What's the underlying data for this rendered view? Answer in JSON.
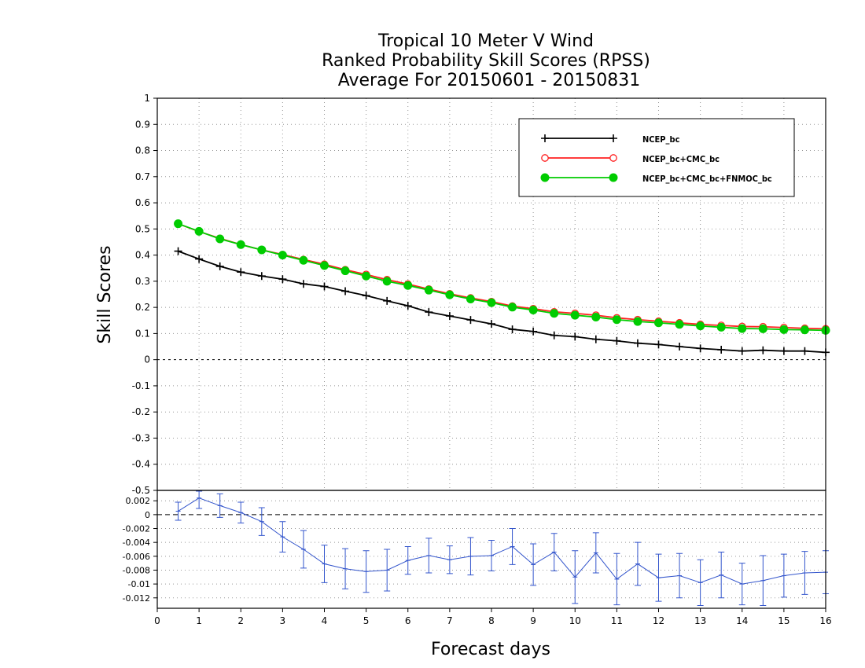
{
  "chart_data": [
    {
      "type": "line",
      "title": [
        "Tropical 10 Meter V Wind",
        "Ranked Probability Skill Scores (RPSS)",
        "Average For 20150601 - 20150831"
      ],
      "xlabel": "Forecast days",
      "ylabel": "Skill Scores",
      "xlim": [
        0,
        16
      ],
      "ylim": [
        -0.5,
        1
      ],
      "xticks": [
        "0",
        "1",
        "2",
        "3",
        "4",
        "5",
        "6",
        "7",
        "8",
        "9",
        "10",
        "11",
        "12",
        "13",
        "14",
        "15",
        "16"
      ],
      "yticks": [
        "-0.5",
        "-0.4",
        "-0.3",
        "-0.2",
        "-0.1",
        "0",
        "0.1",
        "0.2",
        "0.3",
        "0.4",
        "0.5",
        "0.6",
        "0.7",
        "0.8",
        "0.9",
        "1"
      ],
      "grid": true,
      "legend_position": "top-right",
      "x": [
        0.5,
        1,
        1.5,
        2,
        2.5,
        3,
        3.5,
        4,
        4.5,
        5,
        5.5,
        6,
        6.5,
        7,
        7.5,
        8,
        8.5,
        9,
        9.5,
        10,
        10.5,
        11,
        11.5,
        12,
        12.5,
        13,
        13.5,
        14,
        14.5,
        15,
        15.5,
        16
      ],
      "series": [
        {
          "name": "NCEP_bc",
          "color": "#000000",
          "marker": "plus",
          "values": [
            0.415,
            0.385,
            0.357,
            0.335,
            0.32,
            0.308,
            0.29,
            0.28,
            0.262,
            0.245,
            0.225,
            0.206,
            0.182,
            0.167,
            0.152,
            0.137,
            0.116,
            0.108,
            0.093,
            0.088,
            0.078,
            0.072,
            0.063,
            0.058,
            0.05,
            0.043,
            0.038,
            0.033,
            0.036,
            0.033,
            0.033,
            0.028
          ]
        },
        {
          "name": "NCEP_bc+CMC_bc",
          "color": "#ff2020",
          "marker": "open-circle",
          "values": [
            0.52,
            0.49,
            0.464,
            0.44,
            0.42,
            0.402,
            0.383,
            0.365,
            0.344,
            0.326,
            0.306,
            0.289,
            0.27,
            0.252,
            0.236,
            0.222,
            0.205,
            0.195,
            0.183,
            0.177,
            0.17,
            0.16,
            0.153,
            0.147,
            0.141,
            0.135,
            0.131,
            0.127,
            0.126,
            0.123,
            0.12,
            0.118
          ]
        },
        {
          "name": "NCEP_bc+CMC_bc+FNMOC_bc",
          "color": "#00cc00",
          "marker": "filled-circle",
          "values": [
            0.52,
            0.491,
            0.462,
            0.44,
            0.42,
            0.4,
            0.38,
            0.36,
            0.34,
            0.32,
            0.3,
            0.284,
            0.266,
            0.248,
            0.232,
            0.218,
            0.201,
            0.19,
            0.177,
            0.17,
            0.163,
            0.153,
            0.146,
            0.141,
            0.135,
            0.129,
            0.124,
            0.119,
            0.118,
            0.115,
            0.114,
            0.112
          ]
        }
      ]
    },
    {
      "type": "line",
      "xlim": [
        0,
        16
      ],
      "ylim": [
        -0.0135,
        0.0035
      ],
      "yticks": [
        "-0.012",
        "-0.01",
        "-0.008",
        "-0.006",
        "-0.004",
        "-0.002",
        "0",
        "0.002"
      ],
      "color": "#3355cc",
      "x": [
        0.5,
        1,
        1.5,
        2,
        2.5,
        3,
        3.5,
        4,
        4.5,
        5,
        5.5,
        6,
        6.5,
        7,
        7.5,
        8,
        8.5,
        9,
        9.5,
        10,
        10.5,
        11,
        11.5,
        12,
        12.5,
        13,
        13.5,
        14,
        14.5,
        15,
        15.5,
        16
      ],
      "values": [
        0.0005,
        0.0024,
        0.0013,
        0.0003,
        -0.001,
        -0.0032,
        -0.005,
        -0.0071,
        -0.0078,
        -0.0082,
        -0.008,
        -0.0066,
        -0.0059,
        -0.0065,
        -0.006,
        -0.0059,
        -0.0046,
        -0.0072,
        -0.0054,
        -0.009,
        -0.0055,
        -0.0093,
        -0.0071,
        -0.0091,
        -0.0088,
        -0.0098,
        -0.0087,
        -0.01,
        -0.0095,
        -0.0088,
        -0.0084,
        -0.0083
      ],
      "error": [
        0.0013,
        0.0015,
        0.0017,
        0.0015,
        0.002,
        0.0022,
        0.0027,
        0.0027,
        0.0029,
        0.003,
        0.003,
        0.002,
        0.0025,
        0.002,
        0.0027,
        0.0022,
        0.0026,
        0.003,
        0.0027,
        0.0038,
        0.0029,
        0.0037,
        0.0031,
        0.0034,
        0.0032,
        0.0033,
        0.0033,
        0.003,
        0.0036,
        0.0031,
        0.0031,
        0.0031
      ]
    }
  ]
}
